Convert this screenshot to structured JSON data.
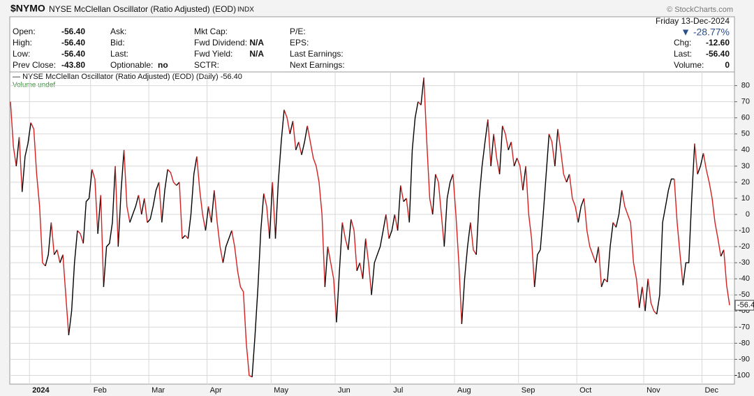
{
  "header": {
    "symbol": "$NYMO",
    "name": "NYSE McClellan Oscillator (Ratio Adjusted) (EOD)",
    "exchange": "INDX",
    "brand": "© StockCharts.com",
    "date": "Friday  13-Dec-2024",
    "change_pct": "▼ -28.77%",
    "col1": [
      [
        "Open:",
        "-56.40"
      ],
      [
        "High:",
        "-56.40"
      ],
      [
        "Low:",
        "-56.40"
      ],
      [
        "Prev Close:",
        "-43.80"
      ]
    ],
    "col2": [
      [
        "Ask:",
        ""
      ],
      [
        "Bid:",
        ""
      ],
      [
        "Last:",
        ""
      ],
      [
        "Optionable:",
        "no"
      ]
    ],
    "col3": [
      [
        "Mkt Cap:",
        ""
      ],
      [
        "Fwd Dividend:",
        "N/A"
      ],
      [
        "Fwd Yield:",
        "N/A"
      ],
      [
        "SCTR:",
        ""
      ]
    ],
    "col4": [
      "P/E:",
      "EPS:",
      "Last Earnings:",
      "Next Earnings:"
    ],
    "col5": [
      [
        "Chg:",
        "-12.60"
      ],
      [
        "Last:",
        "-56.40"
      ],
      [
        "Volume:",
        "0"
      ]
    ]
  },
  "chart_data": {
    "type": "line",
    "up_color": "#000000",
    "down_color": "#d42020",
    "grid": true,
    "volume_label": "Volume undef",
    "last_value_label": "-56.4",
    "ylim": [
      -105.4,
      88.5
    ],
    "yticks": [
      80,
      70,
      60,
      50,
      40,
      30,
      20,
      10,
      0,
      -10,
      -20,
      -30,
      -40,
      -50,
      -60,
      -70,
      -80,
      -90,
      -100
    ],
    "categories": [
      null,
      null,
      null,
      null,
      null,
      null,
      null,
      "2024",
      null,
      null,
      null,
      null,
      null,
      null,
      null,
      null,
      null,
      null,
      null,
      null,
      null,
      null,
      null,
      null,
      null,
      null,
      null,
      null,
      "Feb",
      null,
      null,
      null,
      null,
      null,
      null,
      null,
      null,
      null,
      null,
      null,
      null,
      null,
      null,
      null,
      null,
      null,
      null,
      null,
      "Mar",
      null,
      null,
      null,
      null,
      null,
      null,
      null,
      null,
      null,
      null,
      null,
      null,
      null,
      null,
      null,
      null,
      null,
      null,
      null,
      "Apr",
      null,
      null,
      null,
      null,
      null,
      null,
      null,
      null,
      null,
      null,
      null,
      null,
      null,
      null,
      null,
      null,
      null,
      null,
      null,
      null,
      null,
      "May",
      null,
      null,
      null,
      null,
      null,
      null,
      null,
      null,
      null,
      null,
      null,
      null,
      null,
      null,
      null,
      null,
      null,
      null,
      null,
      null,
      null,
      "Jun",
      null,
      null,
      null,
      null,
      null,
      null,
      null,
      null,
      null,
      null,
      null,
      null,
      null,
      null,
      null,
      null,
      null,
      null,
      "Jul",
      null,
      null,
      null,
      null,
      null,
      null,
      null,
      null,
      null,
      null,
      null,
      null,
      null,
      null,
      null,
      null,
      null,
      null,
      null,
      null,
      null,
      "Aug",
      null,
      null,
      null,
      null,
      null,
      null,
      null,
      null,
      null,
      null,
      null,
      null,
      null,
      null,
      null,
      null,
      null,
      null,
      null,
      null,
      null,
      "Sep",
      null,
      null,
      null,
      null,
      null,
      null,
      null,
      null,
      null,
      null,
      null,
      null,
      null,
      null,
      null,
      null,
      null,
      null,
      null,
      "Oct",
      null,
      null,
      null,
      null,
      null,
      null,
      null,
      null,
      null,
      null,
      null,
      null,
      null,
      null,
      null,
      null,
      null,
      null,
      null,
      null,
      null,
      null,
      "Nov",
      null,
      null,
      null,
      null,
      null,
      null,
      null,
      null,
      null,
      null,
      null,
      null,
      null,
      null,
      null,
      null,
      null,
      null,
      null,
      "Dec",
      null,
      null,
      null,
      null,
      null,
      null,
      null,
      null,
      null
    ],
    "series": [
      {
        "name": "NYSE McClellan Oscillator (Ratio Adjusted) (EOD) (Daily) -56.40",
        "values": [
          70,
          42,
          30,
          48,
          14,
          36,
          44,
          57,
          53,
          25,
          5,
          -30,
          -32,
          -25,
          -5,
          -25,
          -22,
          -30,
          -25,
          -50,
          -75,
          -60,
          -30,
          -10,
          -12,
          -18,
          8,
          10,
          28,
          22,
          -12,
          12,
          -45,
          -20,
          -18,
          -5,
          30,
          -20,
          15,
          40,
          5,
          -5,
          0,
          5,
          12,
          0,
          10,
          -5,
          -3,
          5,
          15,
          20,
          -5,
          15,
          28,
          26,
          20,
          18,
          20,
          -15,
          -13,
          -15,
          0,
          25,
          36,
          15,
          0,
          -10,
          5,
          -5,
          15,
          -5,
          -20,
          -30,
          -20,
          -15,
          -10,
          -20,
          -35,
          -45,
          -48,
          -80,
          -100,
          -101,
          -75,
          -45,
          -10,
          13,
          5,
          -15,
          20,
          -15,
          20,
          45,
          65,
          60,
          50,
          58,
          40,
          45,
          37,
          45,
          55,
          45,
          35,
          30,
          20,
          0,
          -45,
          -20,
          -30,
          -40,
          -67,
          -35,
          -5,
          -15,
          -22,
          -3,
          -10,
          -35,
          -30,
          -40,
          -15,
          -30,
          -50,
          -30,
          -25,
          -20,
          -10,
          0,
          -15,
          -10,
          0,
          -10,
          18,
          8,
          10,
          -5,
          40,
          60,
          70,
          68,
          85,
          45,
          10,
          0,
          25,
          20,
          0,
          -20,
          10,
          20,
          25,
          0,
          -30,
          -68,
          -40,
          -20,
          -5,
          -22,
          -25,
          10,
          30,
          45,
          59,
          30,
          50,
          35,
          25,
          55,
          50,
          40,
          45,
          30,
          35,
          30,
          15,
          30,
          0,
          -15,
          -45,
          -25,
          -22,
          0,
          25,
          50,
          45,
          30,
          53,
          40,
          25,
          20,
          25,
          10,
          5,
          -5,
          5,
          10,
          -10,
          -20,
          -25,
          -30,
          -20,
          -45,
          -40,
          -42,
          -20,
          -5,
          -8,
          0,
          15,
          5,
          0,
          -5,
          -30,
          -40,
          -58,
          -45,
          -60,
          -40,
          -55,
          -60,
          -62,
          -50,
          -5,
          5,
          15,
          22,
          22,
          -5,
          -25,
          -44,
          -30,
          -30,
          10,
          44,
          25,
          30,
          38,
          28,
          20,
          10,
          -5,
          -15,
          -26,
          -22,
          -44,
          -56.4
        ]
      }
    ]
  }
}
